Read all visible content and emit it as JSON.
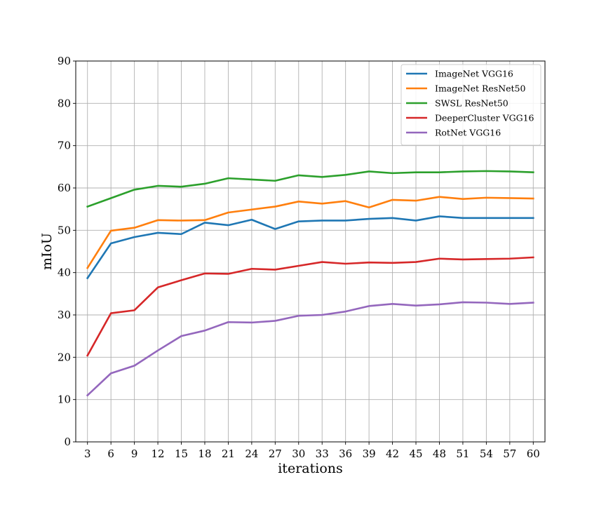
{
  "chart_data": {
    "type": "line",
    "title": "",
    "xlabel": "iterations",
    "ylabel": "mIoU",
    "x": [
      3,
      6,
      9,
      12,
      15,
      18,
      21,
      24,
      27,
      30,
      33,
      36,
      39,
      42,
      45,
      48,
      51,
      54,
      57,
      60
    ],
    "ylim": [
      0,
      90
    ],
    "yticks": [
      0,
      10,
      20,
      30,
      40,
      50,
      60,
      70,
      80,
      90
    ],
    "grid": true,
    "legend_position": "top-right",
    "series": [
      {
        "name": "ImageNet VGG16",
        "color": "#1f77b4",
        "values": [
          38.7,
          46.9,
          48.4,
          49.4,
          49.1,
          51.8,
          51.2,
          52.5,
          50.3,
          52.1,
          52.3,
          52.3,
          52.7,
          52.9,
          52.3,
          53.3,
          52.9,
          52.9,
          52.9,
          52.9
        ]
      },
      {
        "name": "ImageNet ResNet50",
        "color": "#ff7f0e",
        "values": [
          41.1,
          49.9,
          50.6,
          52.4,
          52.3,
          52.4,
          54.2,
          54.9,
          55.6,
          56.8,
          56.3,
          56.9,
          55.4,
          57.2,
          57.0,
          57.9,
          57.4,
          57.7,
          57.6,
          57.5
        ]
      },
      {
        "name": "SWSL ResNet50",
        "color": "#2ca02c",
        "values": [
          55.6,
          57.6,
          59.6,
          60.5,
          60.3,
          61.0,
          62.3,
          62.0,
          61.7,
          63.0,
          62.6,
          63.1,
          63.9,
          63.5,
          63.7,
          63.7,
          63.9,
          64.0,
          63.9,
          63.7
        ]
      },
      {
        "name": "DeeperCluster VGG16",
        "color": "#d62728",
        "values": [
          20.4,
          30.4,
          31.1,
          36.5,
          38.2,
          39.8,
          39.7,
          40.9,
          40.7,
          41.6,
          42.5,
          42.1,
          42.4,
          42.3,
          42.5,
          43.3,
          43.1,
          43.2,
          43.3,
          43.6
        ]
      },
      {
        "name": "RotNet VGG16",
        "color": "#9467bd",
        "values": [
          11.0,
          16.2,
          18.0,
          21.6,
          25.0,
          26.3,
          28.3,
          28.2,
          28.6,
          29.8,
          30.0,
          30.8,
          32.1,
          32.6,
          32.2,
          32.5,
          33.0,
          32.9,
          32.6,
          32.9
        ]
      }
    ]
  }
}
